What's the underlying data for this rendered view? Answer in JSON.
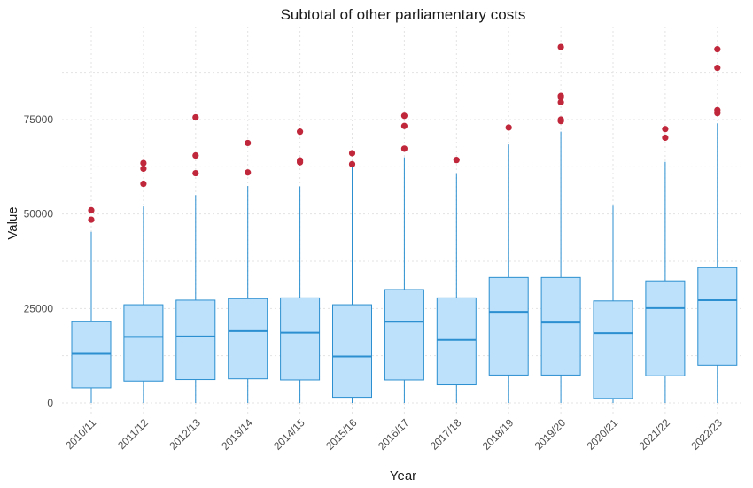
{
  "chart_data": {
    "type": "box",
    "title": "Subtotal of other parliamentary costs",
    "xlabel": "Year",
    "ylabel": "Value",
    "ylim": [
      -3000,
      99000
    ],
    "yticks": [
      0,
      25000,
      50000,
      75000
    ],
    "ytick_labels": [
      "0",
      "25000",
      "50000",
      "75000"
    ],
    "grid": true,
    "colors": {
      "box_fill": "#bde0fb",
      "box_line": "#2b8fd0",
      "outlier": "#c0273a"
    },
    "categories": [
      "2010/11",
      "2011/12",
      "2012/13",
      "2013/14",
      "2014/15",
      "2015/16",
      "2016/17",
      "2017/18",
      "2018/19",
      "2019/20",
      "2020/21",
      "2021/22",
      "2022/23"
    ],
    "boxes": [
      {
        "min": 0,
        "q1": 4000,
        "median": 13000,
        "q3": 21500,
        "max": 45300,
        "outliers": [
          48500,
          51000
        ]
      },
      {
        "min": 0,
        "q1": 5800,
        "median": 17500,
        "q3": 26000,
        "max": 52000,
        "outliers": [
          58000,
          62000,
          63500
        ]
      },
      {
        "min": 0,
        "q1": 6200,
        "median": 17600,
        "q3": 27200,
        "max": 55000,
        "outliers": [
          60800,
          65500,
          75600
        ]
      },
      {
        "min": 0,
        "q1": 6400,
        "median": 19000,
        "q3": 27600,
        "max": 57400,
        "outliers": [
          61000,
          68800
        ]
      },
      {
        "min": 0,
        "q1": 6100,
        "median": 18600,
        "q3": 27800,
        "max": 57300,
        "outliers": [
          63700,
          64200,
          71800
        ]
      },
      {
        "min": 0,
        "q1": 1500,
        "median": 12300,
        "q3": 26000,
        "max": 62500,
        "outliers": [
          63200,
          66100
        ]
      },
      {
        "min": 0,
        "q1": 6100,
        "median": 21500,
        "q3": 30000,
        "max": 65000,
        "outliers": [
          67300,
          73300,
          76000
        ]
      },
      {
        "min": 0,
        "q1": 4800,
        "median": 16700,
        "q3": 27800,
        "max": 60800,
        "outliers": [
          64300
        ]
      },
      {
        "min": 0,
        "q1": 7400,
        "median": 24100,
        "q3": 33200,
        "max": 68400,
        "outliers": [
          72900
        ]
      },
      {
        "min": 0,
        "q1": 7400,
        "median": 21300,
        "q3": 33200,
        "max": 71800,
        "outliers": [
          74600,
          75000,
          79600,
          80900,
          81300,
          94200
        ]
      },
      {
        "min": 0,
        "q1": 1200,
        "median": 18500,
        "q3": 27000,
        "max": 52200,
        "outliers": []
      },
      {
        "min": 0,
        "q1": 7200,
        "median": 25100,
        "q3": 32300,
        "max": 63800,
        "outliers": [
          70200,
          72500
        ]
      },
      {
        "min": 0,
        "q1": 10000,
        "median": 27200,
        "q3": 35800,
        "max": 74000,
        "outliers": [
          76700,
          77500,
          88700,
          93600
        ]
      }
    ]
  }
}
